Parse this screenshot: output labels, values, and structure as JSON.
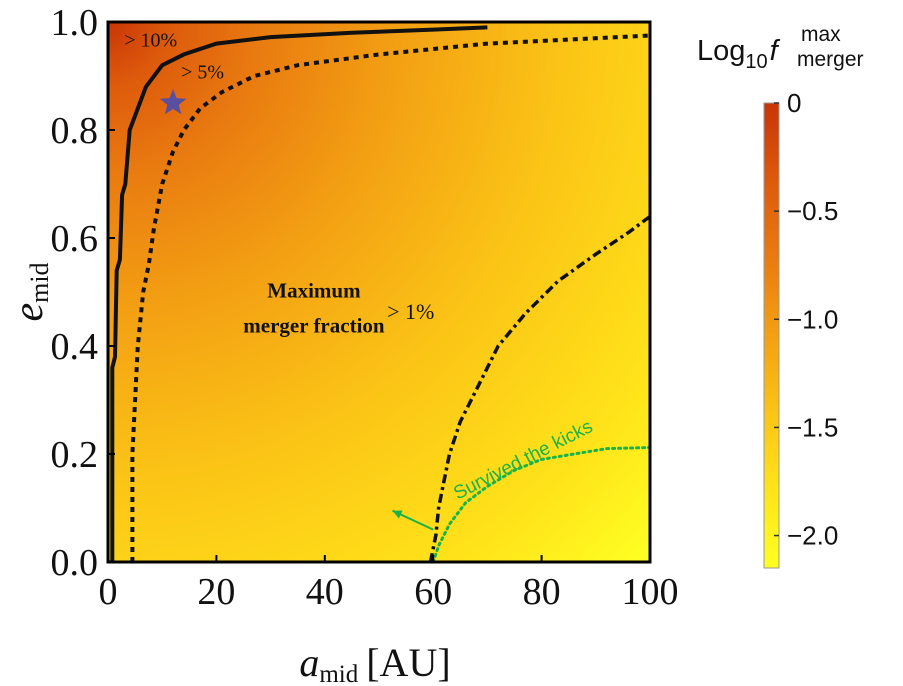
{
  "chart_data": {
    "type": "heatmap",
    "title": "",
    "xlabel": {
      "main": "a",
      "sub": "mid",
      "unit": "[AU]"
    },
    "ylabel": {
      "main": "e",
      "sub": "mid"
    },
    "xlim": [
      0,
      100
    ],
    "ylim": [
      0,
      1
    ],
    "xticks": [
      "0",
      "20",
      "40",
      "60",
      "80",
      "100"
    ],
    "yticks": [
      "0.0",
      "0.2",
      "0.4",
      "0.6",
      "0.8",
      "1.0"
    ],
    "colorbar": {
      "label": {
        "base": "Log",
        "sub": "10",
        "var": "f",
        "sup": "max",
        "subvar": "merger"
      },
      "range": [
        -2.15,
        0
      ],
      "ticks": [
        "0",
        "−0.5",
        "−1.0",
        "−1.5",
        "−2.0"
      ],
      "tick_values": [
        0,
        -0.5,
        -1.0,
        -1.5,
        -2.0
      ],
      "colors": [
        "#ffff22",
        "#ffe41a",
        "#fbc416",
        "#f3a013",
        "#e97b10",
        "#dd5a0c",
        "#c93507"
      ]
    },
    "contours": [
      {
        "label": "> 10%",
        "style": "solid",
        "points": [
          [
            0.8,
            0
          ],
          [
            0.8,
            0.36
          ],
          [
            1.3,
            0.38
          ],
          [
            1.6,
            0.54
          ],
          [
            2.2,
            0.56
          ],
          [
            2.6,
            0.68
          ],
          [
            3.2,
            0.7
          ],
          [
            4,
            0.8
          ],
          [
            5.5,
            0.84
          ],
          [
            7,
            0.88
          ],
          [
            10,
            0.92
          ],
          [
            14,
            0.94
          ],
          [
            20,
            0.96
          ],
          [
            30,
            0.972
          ],
          [
            45,
            0.98
          ],
          [
            60,
            0.986
          ],
          [
            70,
            0.99
          ]
        ]
      },
      {
        "label": "> 5%",
        "style": "dashed",
        "points": [
          [
            4.5,
            0
          ],
          [
            4.5,
            0.2
          ],
          [
            5,
            0.3
          ],
          [
            5.5,
            0.4
          ],
          [
            6.5,
            0.5
          ],
          [
            7.5,
            0.55
          ],
          [
            8.5,
            0.62
          ],
          [
            10,
            0.7
          ],
          [
            12,
            0.76
          ],
          [
            14,
            0.8
          ],
          [
            17,
            0.84
          ],
          [
            21,
            0.87
          ],
          [
            27,
            0.9
          ],
          [
            35,
            0.92
          ],
          [
            50,
            0.94
          ],
          [
            70,
            0.96
          ],
          [
            90,
            0.97
          ],
          [
            100,
            0.975
          ]
        ]
      },
      {
        "label": "> 1%",
        "style": "dashdot",
        "points": [
          [
            59.5,
            0
          ],
          [
            60.5,
            0.05
          ],
          [
            61,
            0.1
          ],
          [
            62,
            0.15
          ],
          [
            63,
            0.2
          ],
          [
            65,
            0.26
          ],
          [
            68,
            0.32
          ],
          [
            72,
            0.4
          ],
          [
            77,
            0.46
          ],
          [
            83,
            0.52
          ],
          [
            90,
            0.57
          ],
          [
            96,
            0.61
          ],
          [
            100,
            0.64
          ]
        ]
      },
      {
        "label": "Survived the kicks",
        "style": "dotted-green",
        "points": [
          [
            60,
            0
          ],
          [
            61,
            0.03
          ],
          [
            63,
            0.07
          ],
          [
            66,
            0.11
          ],
          [
            70,
            0.14
          ],
          [
            75,
            0.17
          ],
          [
            80,
            0.19
          ],
          [
            86,
            0.2
          ],
          [
            92,
            0.21
          ],
          [
            100,
            0.212
          ]
        ]
      }
    ],
    "marker": {
      "shape": "star",
      "x": 12,
      "y": 0.85,
      "color": "#5a4f9e"
    },
    "annotations": {
      "label_10": "> 10%",
      "label_5": "> 5%",
      "label_1": "> 1%",
      "center_line1": "Maximum",
      "center_line2": "merger fraction",
      "survived": "Survived the kicks"
    }
  }
}
